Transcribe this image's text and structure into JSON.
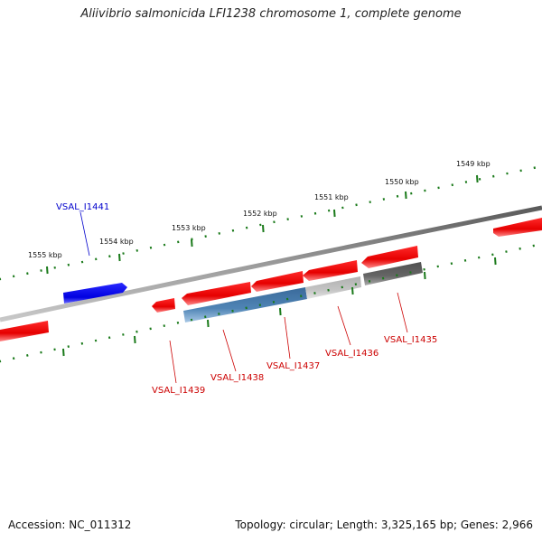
{
  "title": "Aliivibrio salmonicida LFI1238 chromosome 1, complete genome",
  "footer": {
    "accession": "Accession: NC_011312",
    "summary": "Topology: circular; Length: 3,325,165 bp; Genes: 2,966"
  },
  "scale_ticks": [
    "1549 kbp",
    "1550 kbp",
    "1551 kbp",
    "1552 kbp",
    "1553 kbp",
    "1554 kbp",
    "1555 kbp"
  ],
  "genes": [
    {
      "id": "VSAL_I1441",
      "strand": "forward",
      "color": "#0000ee",
      "label_color": "#0000cc"
    },
    {
      "id": "VSAL_I1439",
      "strand": "reverse",
      "color": "#ee0000",
      "label_color": "#cc0000"
    },
    {
      "id": "VSAL_I1438",
      "strand": "reverse",
      "color": "#ee0000",
      "label_color": "#cc0000"
    },
    {
      "id": "VSAL_I1437",
      "strand": "reverse",
      "color": "#ee0000",
      "label_color": "#cc0000"
    },
    {
      "id": "VSAL_I1436",
      "strand": "reverse",
      "color": "#ee0000",
      "label_color": "#cc0000"
    },
    {
      "id": "VSAL_I1435",
      "strand": "reverse",
      "color": "#ee0000",
      "label_color": "#cc0000"
    }
  ],
  "colors": {
    "backbone": "#808080",
    "tick_green": "#1a7a1a",
    "forward_gene": "#0000ee",
    "reverse_gene": "#ee0000",
    "feature_blue": "#4f84b5",
    "feature_light_grey": "#c0c0c0",
    "feature_dark_grey": "#6a6a6a"
  }
}
